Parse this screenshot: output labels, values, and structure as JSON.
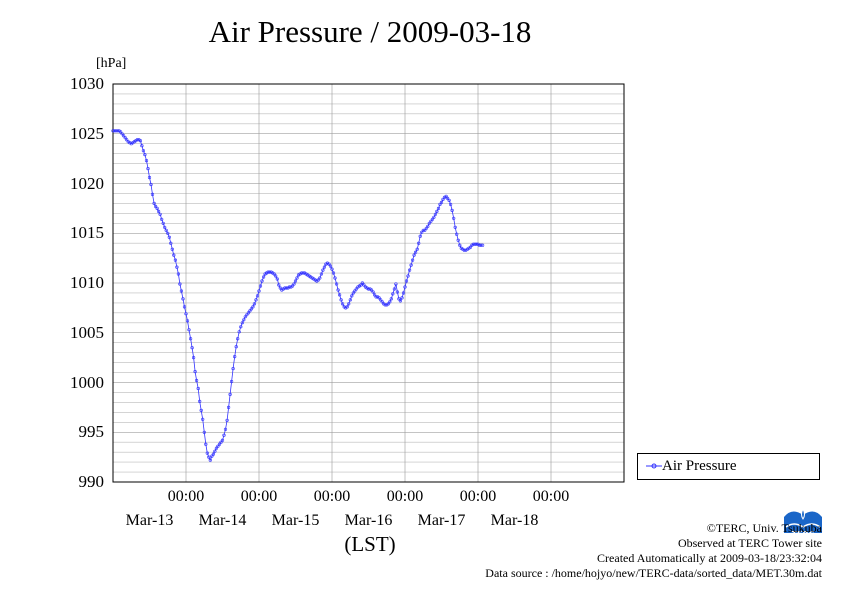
{
  "chart_data": {
    "type": "line",
    "title": "Air Pressure / 2009-03-18",
    "unit": "[hPa]",
    "xlabel": "(LST)",
    "ylabel": "",
    "ylim": [
      990,
      1030
    ],
    "yticks": [
      1030,
      1025,
      1020,
      1015,
      1010,
      1005,
      1000,
      995,
      990
    ],
    "xticks": [
      {
        "time": "00:00",
        "date": "Mar-13"
      },
      {
        "time": "00:00",
        "date": "Mar-14"
      },
      {
        "time": "00:00",
        "date": "Mar-15"
      },
      {
        "time": "00:00",
        "date": "Mar-16"
      },
      {
        "time": "00:00",
        "date": "Mar-17"
      },
      {
        "time": "00:00",
        "date": "Mar-18"
      }
    ],
    "grid": true,
    "legend_position": "bottom-right, outside plot",
    "series": [
      {
        "name": "Air Pressure",
        "color": "#3333ff",
        "x_start": "2009-03-12 00:00",
        "interval_minutes": 30,
        "values": [
          1025.3,
          1025.3,
          1025.3,
          1025.3,
          1025.3,
          1025.2,
          1025.0,
          1024.8,
          1024.6,
          1024.4,
          1024.2,
          1024.1,
          1024.0,
          1024.1,
          1024.2,
          1024.3,
          1024.4,
          1024.4,
          1024.3,
          1023.8,
          1023.3,
          1022.9,
          1022.3,
          1021.5,
          1020.6,
          1019.9,
          1018.9,
          1018.0,
          1017.7,
          1017.5,
          1017.2,
          1016.9,
          1016.4,
          1016.0,
          1015.6,
          1015.3,
          1015.0,
          1014.6,
          1014.0,
          1013.4,
          1012.8,
          1012.3,
          1011.6,
          1010.9,
          1009.9,
          1009.2,
          1008.4,
          1007.6,
          1006.9,
          1006.2,
          1005.3,
          1004.4,
          1003.5,
          1002.5,
          1001.1,
          1000.2,
          999.4,
          998.1,
          997.2,
          996.3,
          995.0,
          993.8,
          992.9,
          992.5,
          992.2,
          992.6,
          992.8,
          993.1,
          993.4,
          993.6,
          993.8,
          994.0,
          994.2,
          994.7,
          995.3,
          996.2,
          997.5,
          998.8,
          1000.1,
          1001.4,
          1002.6,
          1003.6,
          1004.4,
          1005.1,
          1005.6,
          1006.0,
          1006.3,
          1006.6,
          1006.8,
          1007.0,
          1007.2,
          1007.4,
          1007.6,
          1007.9,
          1008.3,
          1008.7,
          1009.2,
          1009.7,
          1010.2,
          1010.6,
          1010.9,
          1011.0,
          1011.1,
          1011.1,
          1011.1,
          1011.0,
          1010.9,
          1010.7,
          1010.4,
          1009.8,
          1009.5,
          1009.3,
          1009.4,
          1009.5,
          1009.5,
          1009.5,
          1009.6,
          1009.6,
          1009.7,
          1009.9,
          1010.2,
          1010.5,
          1010.8,
          1010.9,
          1011.0,
          1011.0,
          1011.0,
          1010.9,
          1010.8,
          1010.7,
          1010.6,
          1010.5,
          1010.4,
          1010.3,
          1010.2,
          1010.3,
          1010.5,
          1010.9,
          1011.3,
          1011.6,
          1011.9,
          1012.0,
          1011.9,
          1011.7,
          1011.4,
          1011.0,
          1010.5,
          1009.9,
          1009.3,
          1008.8,
          1008.3,
          1007.9,
          1007.6,
          1007.5,
          1007.6,
          1007.9,
          1008.3,
          1008.7,
          1009.0,
          1009.2,
          1009.4,
          1009.6,
          1009.7,
          1009.8,
          1010.0,
          1009.8,
          1009.6,
          1009.5,
          1009.4,
          1009.4,
          1009.3,
          1009.1,
          1008.8,
          1008.6,
          1008.6,
          1008.5,
          1008.3,
          1008.1,
          1007.9,
          1007.8,
          1007.8,
          1007.9,
          1008.1,
          1008.4,
          1008.9,
          1009.4,
          1009.9,
          1009.1,
          1008.4,
          1008.2,
          1008.5,
          1009.0,
          1009.6,
          1010.2,
          1010.7,
          1011.3,
          1011.8,
          1012.3,
          1012.8,
          1013.1,
          1013.4,
          1014.0,
          1014.7,
          1015.1,
          1015.3,
          1015.3,
          1015.5,
          1015.7,
          1016.0,
          1016.2,
          1016.4,
          1016.6,
          1016.9,
          1017.2,
          1017.5,
          1017.9,
          1018.1,
          1018.4,
          1018.6,
          1018.7,
          1018.5,
          1018.3,
          1017.9,
          1017.3,
          1016.5,
          1015.6,
          1014.9,
          1014.3,
          1013.8,
          1013.5,
          1013.4,
          1013.3,
          1013.3,
          1013.4,
          1013.5,
          1013.6,
          1013.8,
          1013.9,
          1013.9,
          1013.9,
          1013.9,
          1013.8,
          1013.8,
          1013.8
        ]
      }
    ]
  },
  "legend": {
    "label": "Air Pressure"
  },
  "credits": {
    "line1": "©TERC, Univ. Tsukuba",
    "line2": "Observed at TERC Tower site",
    "line3": "Created Automatically at 2009-03-18/23:32:04",
    "line4": "Data source : /home/hojyo/new/TERC-data/sorted_data/MET.30m.dat"
  },
  "logo": {
    "text": "TERC",
    "color": "#1a66c8",
    "icon": "terc-logo-icon"
  }
}
